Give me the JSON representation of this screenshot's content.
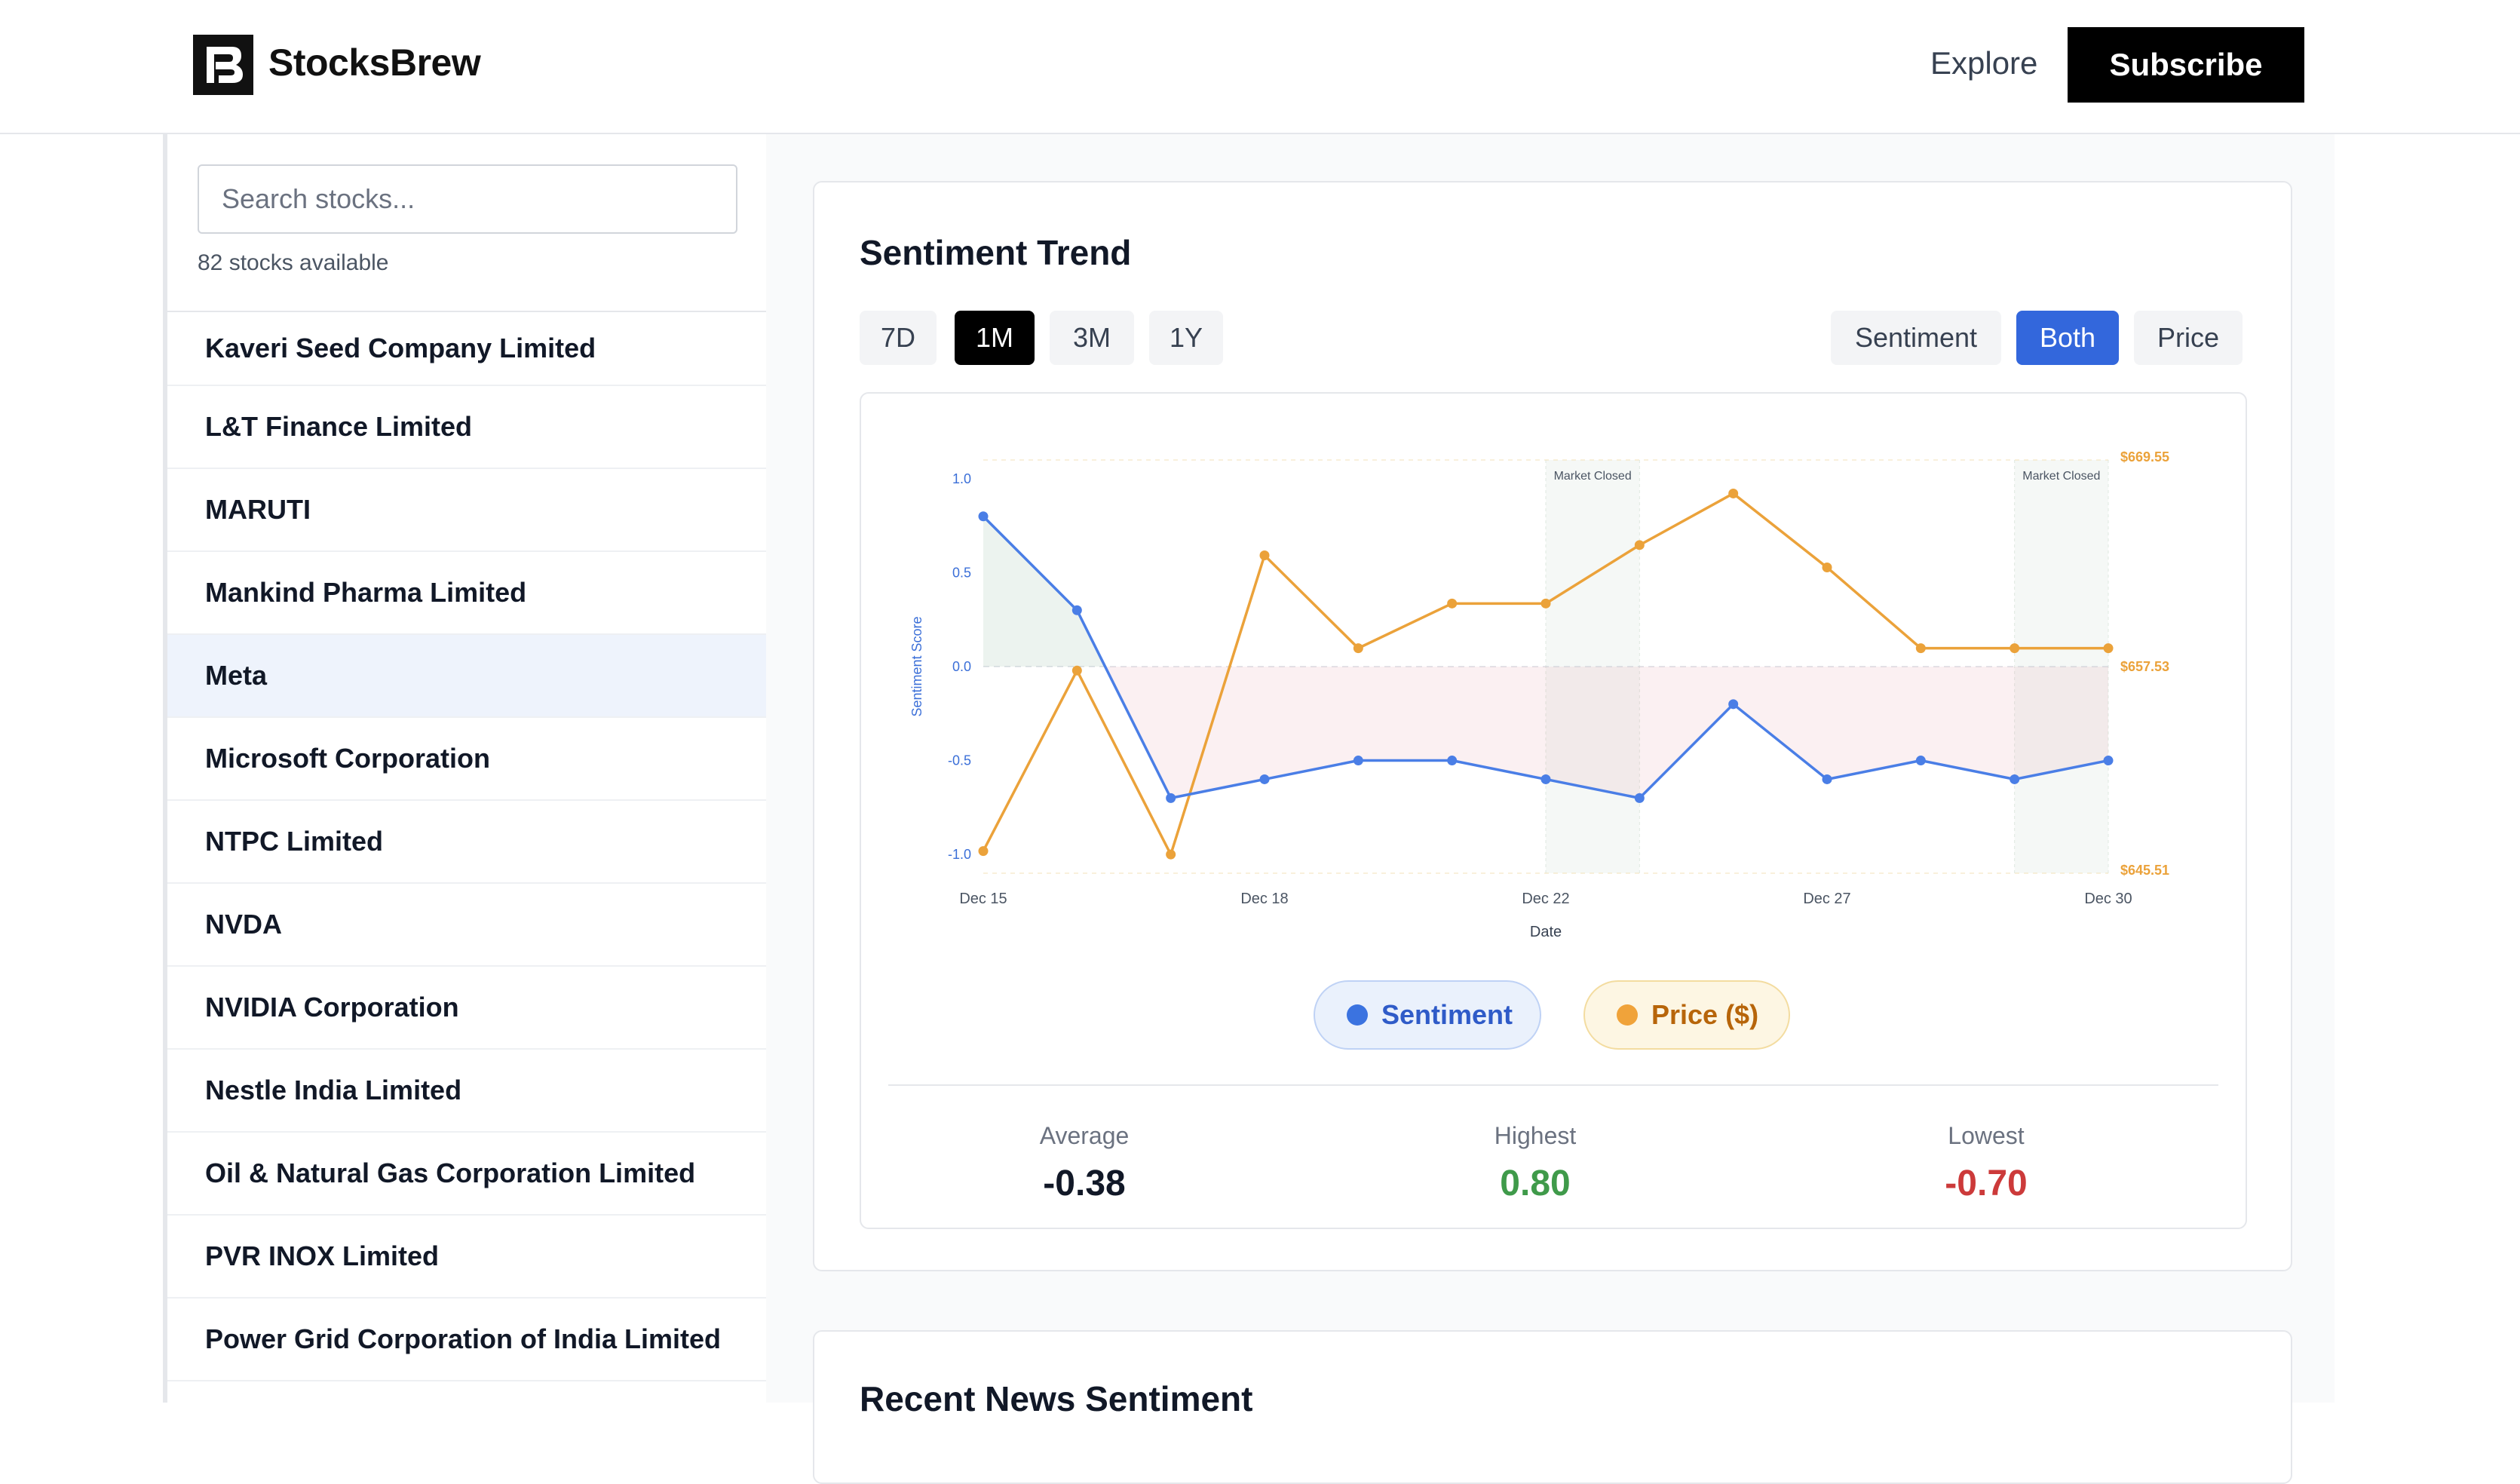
{
  "header": {
    "brand": "StocksBrew",
    "nav_explore": "Explore",
    "subscribe_label": "Subscribe"
  },
  "sidebar": {
    "search_placeholder": "Search stocks...",
    "count_text": "82 stocks available",
    "items": [
      {
        "label": "Kaveri Seed Company Limited",
        "active": false
      },
      {
        "label": "L&T Finance Limited",
        "active": false
      },
      {
        "label": "MARUTI",
        "active": false
      },
      {
        "label": "Mankind Pharma Limited",
        "active": false
      },
      {
        "label": "Meta",
        "active": true
      },
      {
        "label": "Microsoft Corporation",
        "active": false
      },
      {
        "label": "NTPC Limited",
        "active": false
      },
      {
        "label": "NVDA",
        "active": false
      },
      {
        "label": "NVIDIA Corporation",
        "active": false
      },
      {
        "label": "Nestle India Limited",
        "active": false
      },
      {
        "label": "Oil & Natural Gas Corporation Limited",
        "active": false
      },
      {
        "label": "PVR INOX Limited",
        "active": false
      },
      {
        "label": "Power Grid Corporation of India Limited",
        "active": false
      }
    ]
  },
  "sentiment_card": {
    "title": "Sentiment Trend",
    "ranges": [
      "7D",
      "1M",
      "3M",
      "1Y"
    ],
    "active_range": "1M",
    "modes": [
      "Sentiment",
      "Both",
      "Price"
    ],
    "active_mode": "Both",
    "legend": {
      "sentiment": "Sentiment",
      "price": "Price ($)"
    },
    "stats": {
      "average_label": "Average",
      "average_value": "-0.38",
      "highest_label": "Highest",
      "highest_value": "0.80",
      "lowest_label": "Lowest",
      "lowest_value": "-0.70"
    }
  },
  "news_card": {
    "title": "Recent News Sentiment"
  },
  "colors": {
    "sentiment": "#4a7ee6",
    "price": "#eba23a",
    "accent": "#3367dc"
  },
  "chart_data": {
    "type": "line",
    "xlabel": "Date",
    "ylabel": "Sentiment Score",
    "x_ticks": [
      "Dec 15",
      "Dec 18",
      "Dec 22",
      "Dec 27",
      "Dec 30"
    ],
    "y_ticks": [
      "1.0",
      "0.5",
      "0.0",
      "-0.5",
      "-1.0"
    ],
    "ylim": [
      -1.1,
      1.1
    ],
    "y2_ticks": [
      "$669.55",
      "$657.53",
      "$645.51"
    ],
    "y2lim": [
      645.51,
      669.55
    ],
    "market_closed_label": "Market Closed",
    "market_closed_spans": [
      [
        6,
        7
      ],
      [
        11,
        12
      ]
    ],
    "series": [
      {
        "name": "Sentiment",
        "axis": "left",
        "values": [
          0.8,
          0.3,
          -0.7,
          -0.6,
          -0.5,
          -0.5,
          -0.6,
          -0.7,
          -0.2,
          -0.6,
          -0.5,
          -0.6,
          -0.5
        ]
      },
      {
        "name": "Price ($)",
        "axis": "right",
        "values": [
          646.8,
          657.3,
          646.6,
          664.0,
          658.6,
          661.2,
          661.2,
          664.6,
          667.6,
          663.3,
          658.6,
          658.6,
          658.6
        ]
      }
    ]
  }
}
